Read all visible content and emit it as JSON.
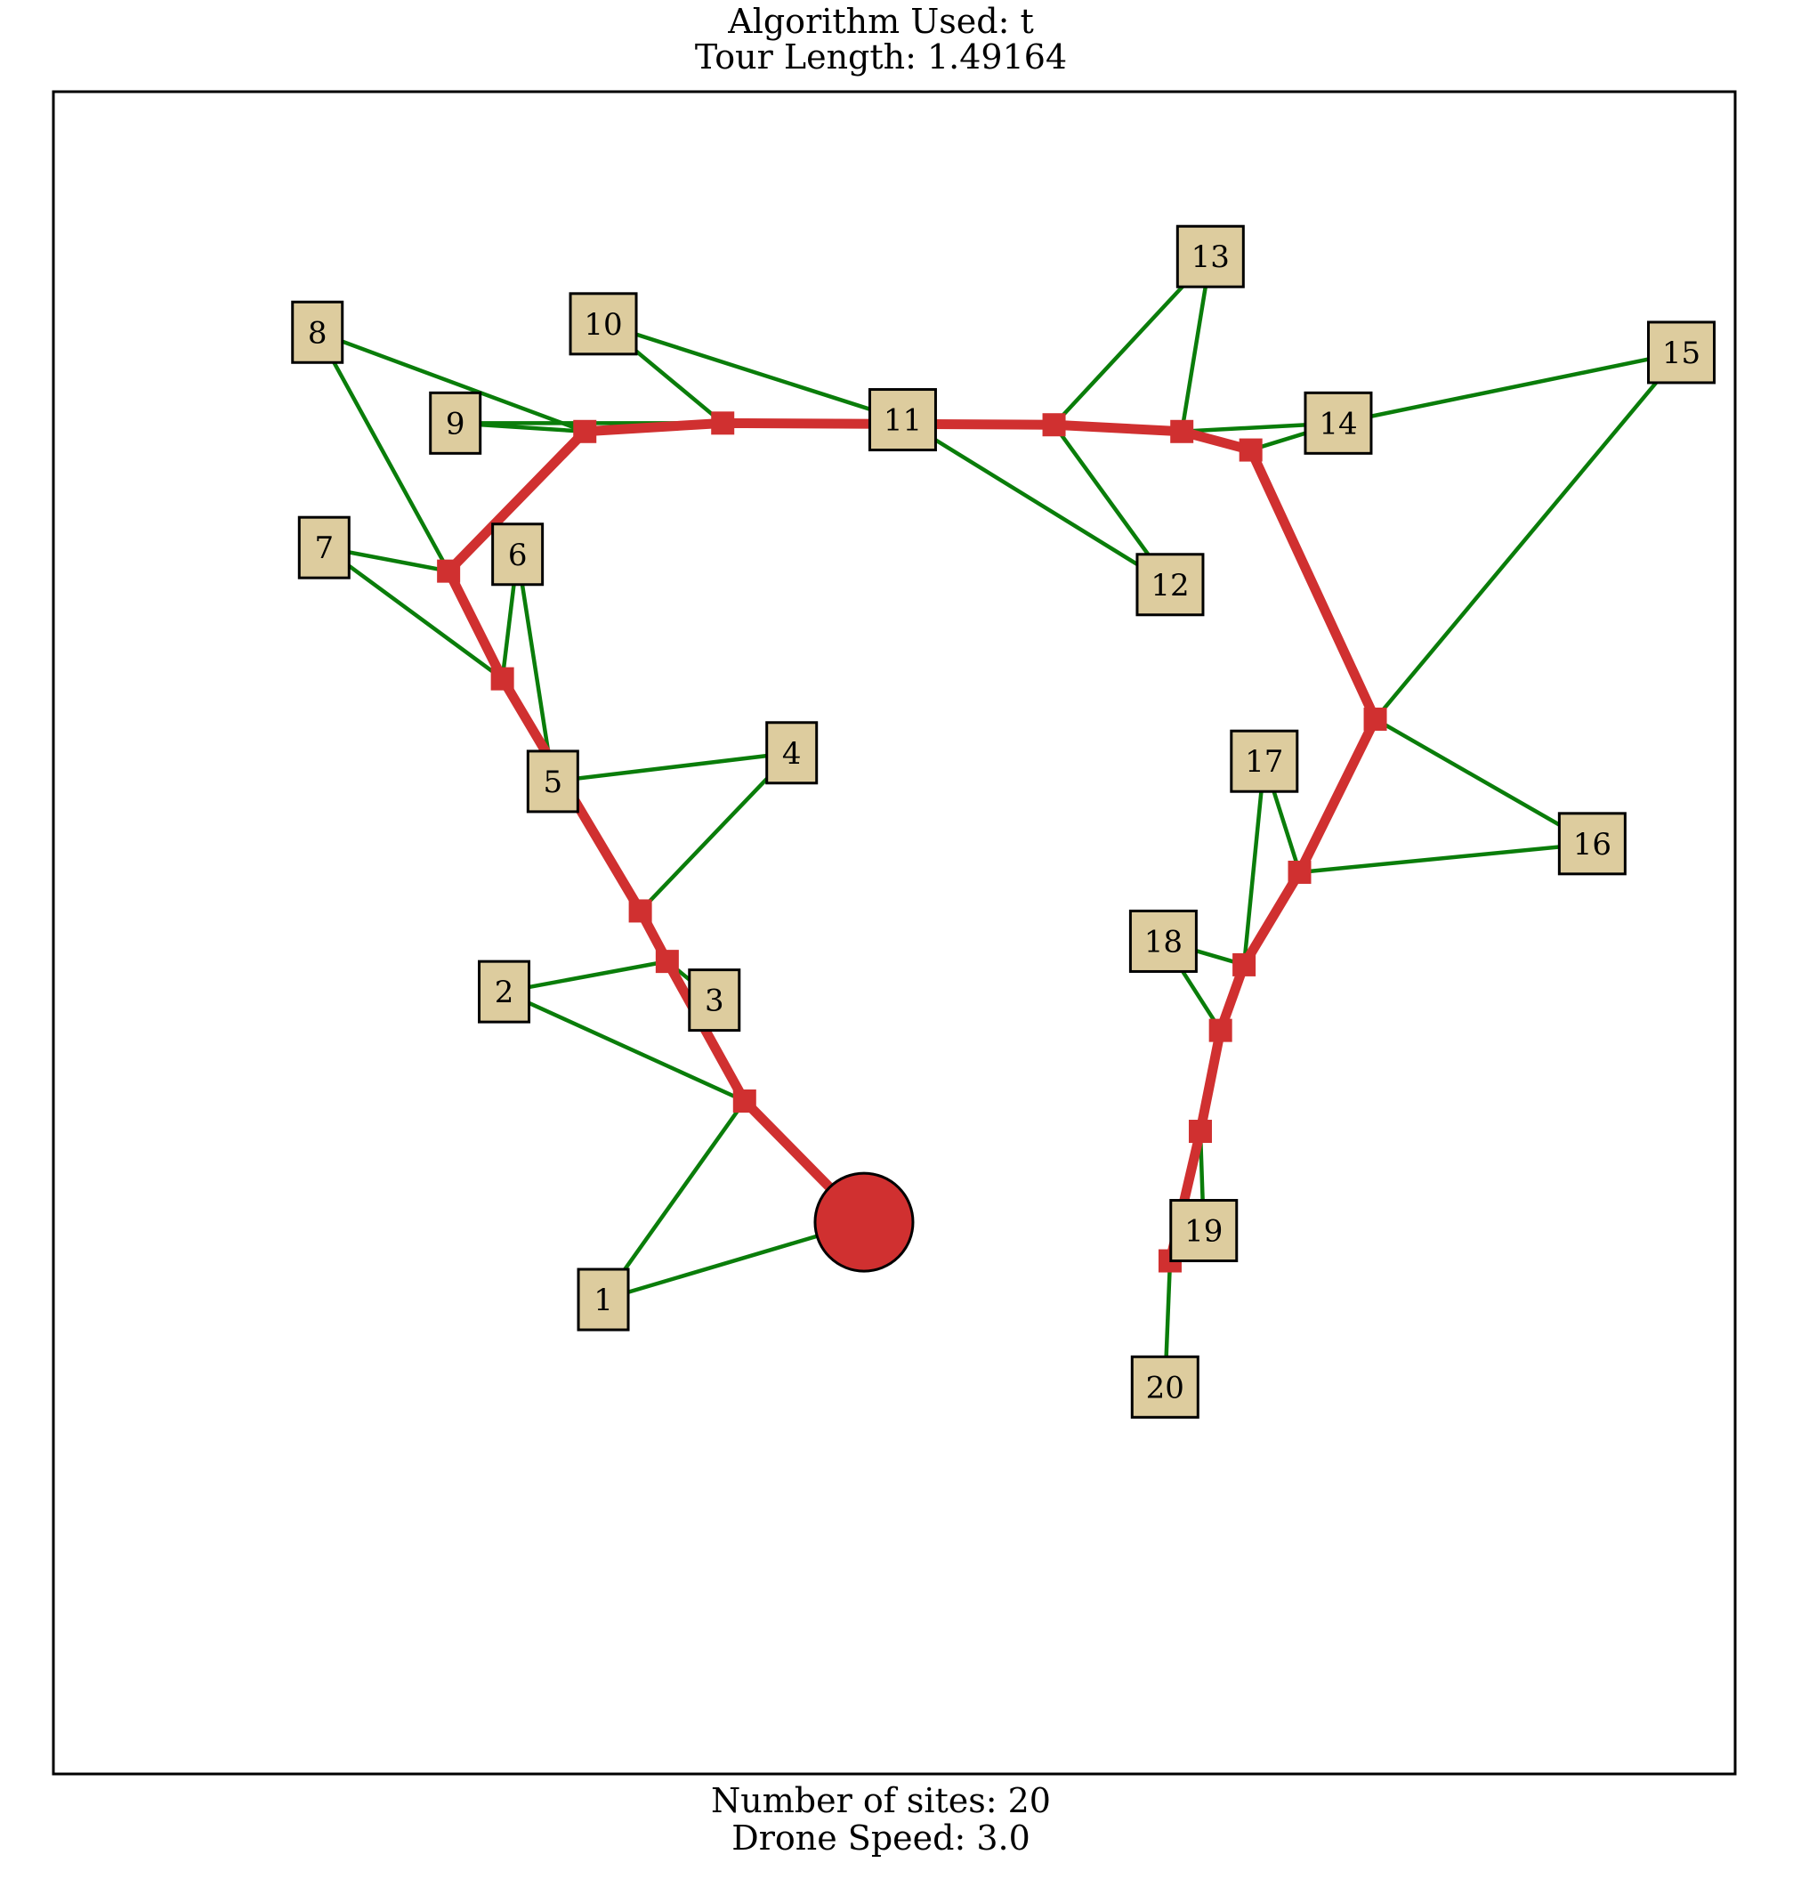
{
  "header": {
    "algorithm_line": "Algorithm Used: t",
    "tour_line": "Tour Length: 1.49164"
  },
  "footer": {
    "sites_line": "Number of sites: 20",
    "speed_line": "Drone Speed: 3.0"
  },
  "colors": {
    "site_fill": "#ddcc9e",
    "drone_path": "#d03030",
    "assignment_edge": "#0a7d0a",
    "frame": "#000000"
  },
  "chart_data": {
    "type": "scatter",
    "xlim": [
      0,
      1
    ],
    "ylim": [
      0,
      1
    ],
    "depot": {
      "x": 0.482,
      "y": 0.328
    },
    "sites": [
      {
        "id": "1",
        "x": 0.327,
        "y": 0.282
      },
      {
        "id": "2",
        "x": 0.268,
        "y": 0.465
      },
      {
        "id": "3",
        "x": 0.393,
        "y": 0.46
      },
      {
        "id": "4",
        "x": 0.439,
        "y": 0.607
      },
      {
        "id": "5",
        "x": 0.297,
        "y": 0.59
      },
      {
        "id": "6",
        "x": 0.276,
        "y": 0.725
      },
      {
        "id": "7",
        "x": 0.161,
        "y": 0.729
      },
      {
        "id": "8",
        "x": 0.157,
        "y": 0.857
      },
      {
        "id": "9",
        "x": 0.239,
        "y": 0.803
      },
      {
        "id": "10",
        "x": 0.327,
        "y": 0.862
      },
      {
        "id": "11",
        "x": 0.505,
        "y": 0.805
      },
      {
        "id": "12",
        "x": 0.664,
        "y": 0.707
      },
      {
        "id": "13",
        "x": 0.688,
        "y": 0.902
      },
      {
        "id": "14",
        "x": 0.764,
        "y": 0.803
      },
      {
        "id": "15",
        "x": 0.968,
        "y": 0.845
      },
      {
        "id": "16",
        "x": 0.915,
        "y": 0.553
      },
      {
        "id": "17",
        "x": 0.72,
        "y": 0.602
      },
      {
        "id": "18",
        "x": 0.66,
        "y": 0.495
      },
      {
        "id": "19",
        "x": 0.684,
        "y": 0.323
      },
      {
        "id": "20",
        "x": 0.661,
        "y": 0.23
      }
    ],
    "waypoints": [
      {
        "id": "w1",
        "x": 0.411,
        "y": 0.4
      },
      {
        "id": "w2",
        "x": 0.365,
        "y": 0.483
      },
      {
        "id": "w3",
        "x": 0.349,
        "y": 0.513
      },
      {
        "id": "w4",
        "x": 0.267,
        "y": 0.651
      },
      {
        "id": "w5",
        "x": 0.235,
        "y": 0.715
      },
      {
        "id": "w6",
        "x": 0.316,
        "y": 0.798
      },
      {
        "id": "w7",
        "x": 0.398,
        "y": 0.803
      },
      {
        "id": "w8",
        "x": 0.595,
        "y": 0.802
      },
      {
        "id": "w9",
        "x": 0.671,
        "y": 0.798
      },
      {
        "id": "w10",
        "x": 0.712,
        "y": 0.787
      },
      {
        "id": "w11",
        "x": 0.786,
        "y": 0.627
      },
      {
        "id": "w12",
        "x": 0.741,
        "y": 0.536
      },
      {
        "id": "w13",
        "x": 0.708,
        "y": 0.481
      },
      {
        "id": "w14",
        "x": 0.694,
        "y": 0.442
      },
      {
        "id": "w15",
        "x": 0.682,
        "y": 0.382
      },
      {
        "id": "w16",
        "x": 0.664,
        "y": 0.305
      }
    ],
    "drone_path": [
      "depot",
      "w1",
      "w2",
      "w3",
      "w4",
      "w5",
      "w6",
      "w7",
      "w8",
      "w9",
      "w10",
      "w11",
      "w12",
      "w13",
      "w14",
      "w15",
      "w16"
    ],
    "edges": [
      [
        "depot",
        "1"
      ],
      [
        "1",
        "w1"
      ],
      [
        "2",
        "w1"
      ],
      [
        "2",
        "w2"
      ],
      [
        "3",
        "w2"
      ],
      [
        "4",
        "w3"
      ],
      [
        "4",
        "5"
      ],
      [
        "6",
        "5"
      ],
      [
        "6",
        "w4"
      ],
      [
        "7",
        "w4"
      ],
      [
        "7",
        "w5"
      ],
      [
        "8",
        "w5"
      ],
      [
        "8",
        "w6"
      ],
      [
        "9",
        "w6"
      ],
      [
        "9",
        "w7"
      ],
      [
        "10",
        "w7"
      ],
      [
        "10",
        "11"
      ],
      [
        "11",
        "12"
      ],
      [
        "13",
        "w8"
      ],
      [
        "13",
        "w9"
      ],
      [
        "12",
        "w8"
      ],
      [
        "14",
        "w9"
      ],
      [
        "14",
        "w10"
      ],
      [
        "15",
        "14"
      ],
      [
        "15",
        "w11"
      ],
      [
        "16",
        "w11"
      ],
      [
        "16",
        "w12"
      ],
      [
        "17",
        "w12"
      ],
      [
        "17",
        "w13"
      ],
      [
        "18",
        "w13"
      ],
      [
        "18",
        "w14"
      ],
      [
        "19",
        "w15"
      ],
      [
        "20",
        "w16"
      ]
    ]
  }
}
